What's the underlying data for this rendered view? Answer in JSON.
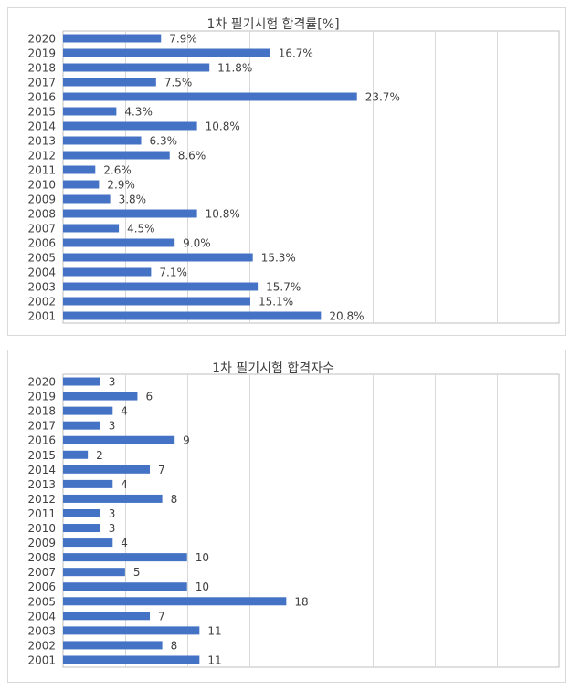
{
  "chart_data": [
    {
      "type": "bar",
      "orientation": "horizontal",
      "title": "1차 필기시험 합격률[%]",
      "categories": [
        "2020",
        "2019",
        "2018",
        "2017",
        "2016",
        "2015",
        "2014",
        "2013",
        "2012",
        "2011",
        "2010",
        "2009",
        "2008",
        "2007",
        "2006",
        "2005",
        "2004",
        "2003",
        "2002",
        "2001"
      ],
      "values": [
        7.9,
        16.7,
        11.8,
        7.5,
        23.7,
        4.3,
        10.8,
        6.3,
        8.6,
        2.6,
        2.9,
        3.8,
        10.8,
        4.5,
        9.0,
        15.3,
        7.1,
        15.7,
        15.1,
        20.8
      ],
      "value_labels": [
        "7.9%",
        "16.7%",
        "11.8%",
        "7.5%",
        "23.7%",
        "4.3%",
        "10.8%",
        "6.3%",
        "8.6%",
        "2.6%",
        "2.9%",
        "3.8%",
        "10.8%",
        "4.5%",
        "9.0%",
        "15.3%",
        "7.1%",
        "15.7%",
        "15.1%",
        "20.8%"
      ],
      "xlim": [
        0,
        40
      ],
      "x_gridline_step": 5,
      "grid": true,
      "bar_color": "#4472c4",
      "gridline_color": "#d9d9d9"
    },
    {
      "type": "bar",
      "orientation": "horizontal",
      "title": "1차 필기시험 합격자수",
      "categories": [
        "2020",
        "2019",
        "2018",
        "2017",
        "2016",
        "2015",
        "2014",
        "2013",
        "2012",
        "2011",
        "2010",
        "2009",
        "2008",
        "2007",
        "2006",
        "2005",
        "2004",
        "2003",
        "2002",
        "2001"
      ],
      "values": [
        3,
        6,
        4,
        3,
        9,
        2,
        7,
        4,
        8,
        3,
        3,
        4,
        10,
        5,
        10,
        18,
        7,
        11,
        8,
        11
      ],
      "value_labels": [
        "3",
        "6",
        "4",
        "3",
        "9",
        "2",
        "7",
        "4",
        "8",
        "3",
        "3",
        "4",
        "10",
        "5",
        "10",
        "18",
        "7",
        "11",
        "8",
        "11"
      ],
      "xlim": [
        0,
        40
      ],
      "x_gridline_step": 5,
      "grid": true,
      "bar_color": "#4472c4",
      "gridline_color": "#d9d9d9"
    }
  ]
}
